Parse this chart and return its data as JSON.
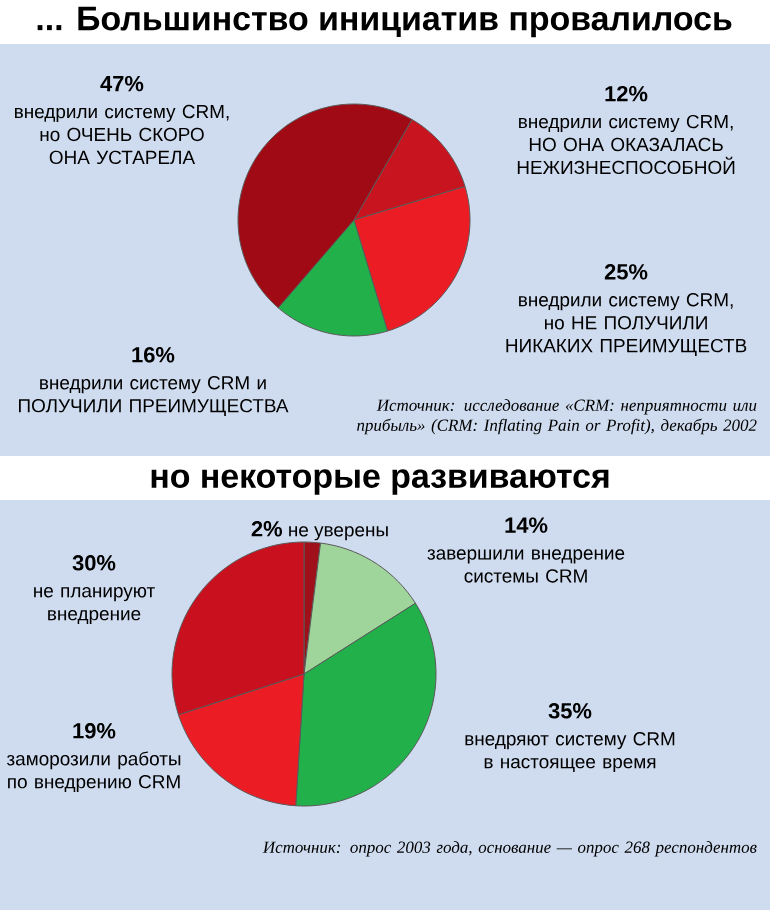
{
  "chart_data": [
    {
      "type": "pie",
      "title": "... Большинство инициатив провалилось",
      "categories": [
        "внедрили систему CRM, НО ОНА ОКАЗАЛАСЬ НЕЖИЗНЕСПОСОБНОЙ",
        "внедрили систему CRM, но НЕ ПОЛУЧИЛИ НИКАКИХ ПРЕИМУЩЕСТВ",
        "внедрили систему CRM и ПОЛУЧИЛИ ПРЕИМУЩЕСТВА",
        "внедрили систему CRM, но ОЧЕНЬ СКОРО ОНА УСТАРЕЛА"
      ],
      "values": [
        12,
        25,
        16,
        47
      ],
      "value_labels": [
        "12%",
        "25%",
        "16%",
        "47%"
      ],
      "colors": [
        "#c8141e",
        "#ec1c24",
        "#22b04a",
        "#a00a14"
      ],
      "annotations": [
        "Источник: исследование «CRM: неприятности или прибыль» (CRM: Inflating Pain or Profit), декабрь 2002"
      ]
    },
    {
      "type": "pie",
      "title": "но некоторые развиваются",
      "categories": [
        "не уверены",
        "завершили внедрение системы CRM",
        "внедряют систему CRM в настоящее время",
        "заморозили работы по внедрению CRM",
        "не планируют внедрение"
      ],
      "values": [
        2,
        14,
        35,
        19,
        30
      ],
      "value_labels": [
        "2%",
        "14%",
        "35%",
        "19%",
        "30%"
      ],
      "colors": [
        "#a0101a",
        "#9fd49b",
        "#22b04a",
        "#ec1c24",
        "#c8101e"
      ],
      "annotations": [
        "Источник: опрос 2003 года, основание — опрос 268 респондентов"
      ]
    }
  ]
}
